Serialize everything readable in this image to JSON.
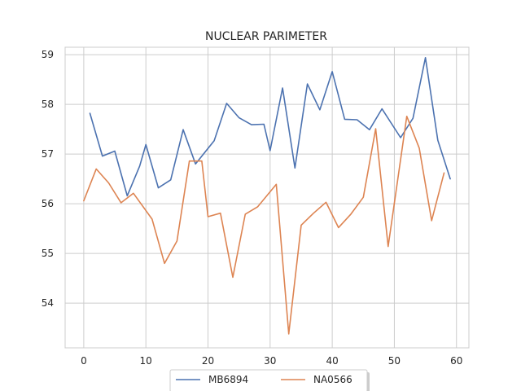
{
  "chart_data": {
    "type": "line",
    "title": "NUCLEAR PARIMETER",
    "xlabel": "",
    "ylabel": "",
    "xlim": [
      -3.0,
      62.0
    ],
    "ylim": [
      53.1,
      59.15
    ],
    "xticks": [
      0,
      10,
      20,
      30,
      40,
      50,
      60
    ],
    "yticks": [
      54,
      55,
      56,
      57,
      58,
      59
    ],
    "grid": true,
    "legend": {
      "placement": "bottom-center",
      "columns": 2
    },
    "series": [
      {
        "name": "MB6894",
        "color": "#4c72b0",
        "x": [
          1,
          3,
          5,
          7,
          9,
          10,
          12,
          14,
          16,
          18,
          21,
          23,
          25,
          27,
          29,
          30,
          32,
          34,
          36,
          38,
          40,
          42,
          44,
          46,
          48,
          51,
          53,
          55,
          57,
          59
        ],
        "y": [
          57.82,
          56.96,
          57.06,
          56.16,
          56.76,
          57.19,
          56.32,
          56.48,
          57.49,
          56.8,
          57.27,
          58.02,
          57.73,
          57.59,
          57.6,
          57.07,
          58.33,
          56.72,
          58.41,
          57.89,
          58.66,
          57.7,
          57.69,
          57.49,
          57.91,
          57.33,
          57.72,
          58.94,
          57.28,
          56.5
        ]
      },
      {
        "name": "NA0566",
        "color": "#dd8452",
        "x": [
          0,
          2,
          4,
          6,
          8,
          11,
          13,
          15,
          17,
          19,
          20,
          22,
          24,
          26,
          28,
          31,
          33,
          35,
          37,
          39,
          41,
          43,
          45,
          47,
          49,
          52,
          54,
          56,
          58
        ],
        "y": [
          56.06,
          56.7,
          56.42,
          56.02,
          56.21,
          55.69,
          54.8,
          55.25,
          56.86,
          56.86,
          55.74,
          55.81,
          54.52,
          55.79,
          55.94,
          56.39,
          53.38,
          55.57,
          55.81,
          56.03,
          55.52,
          55.79,
          56.13,
          57.51,
          55.14,
          57.76,
          57.12,
          55.66,
          56.62
        ]
      }
    ]
  }
}
